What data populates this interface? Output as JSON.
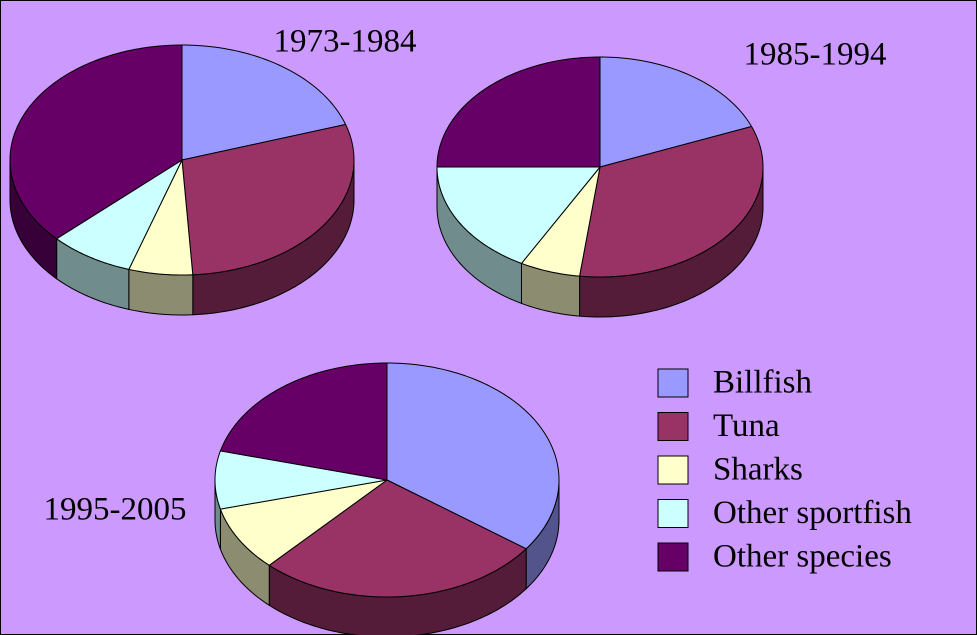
{
  "chart_data": [
    {
      "type": "pie",
      "title": "1973-1984",
      "categories": [
        "Billfish",
        "Tuna",
        "Sharks",
        "Other sportfish",
        "Other species"
      ],
      "values": [
        20,
        29,
        6,
        8,
        37
      ],
      "colors": [
        "#9999ff",
        "#993366",
        "#ffffcc",
        "#ccffff",
        "#660066"
      ]
    },
    {
      "type": "pie",
      "title": "1985-1994",
      "categories": [
        "Billfish",
        "Tuna",
        "Sharks",
        "Other sportfish",
        "Other species"
      ],
      "values": [
        19,
        33,
        6,
        17,
        25
      ],
      "colors": [
        "#9999ff",
        "#993366",
        "#ffffcc",
        "#ccffff",
        "#660066"
      ]
    },
    {
      "type": "pie",
      "title": "1995-2005",
      "categories": [
        "Billfish",
        "Tuna",
        "Sharks",
        "Other sportfish",
        "Other species"
      ],
      "values": [
        35,
        27,
        9,
        8,
        21
      ],
      "colors": [
        "#9999ff",
        "#993366",
        "#ffffcc",
        "#ccffff",
        "#660066"
      ]
    }
  ]
}
